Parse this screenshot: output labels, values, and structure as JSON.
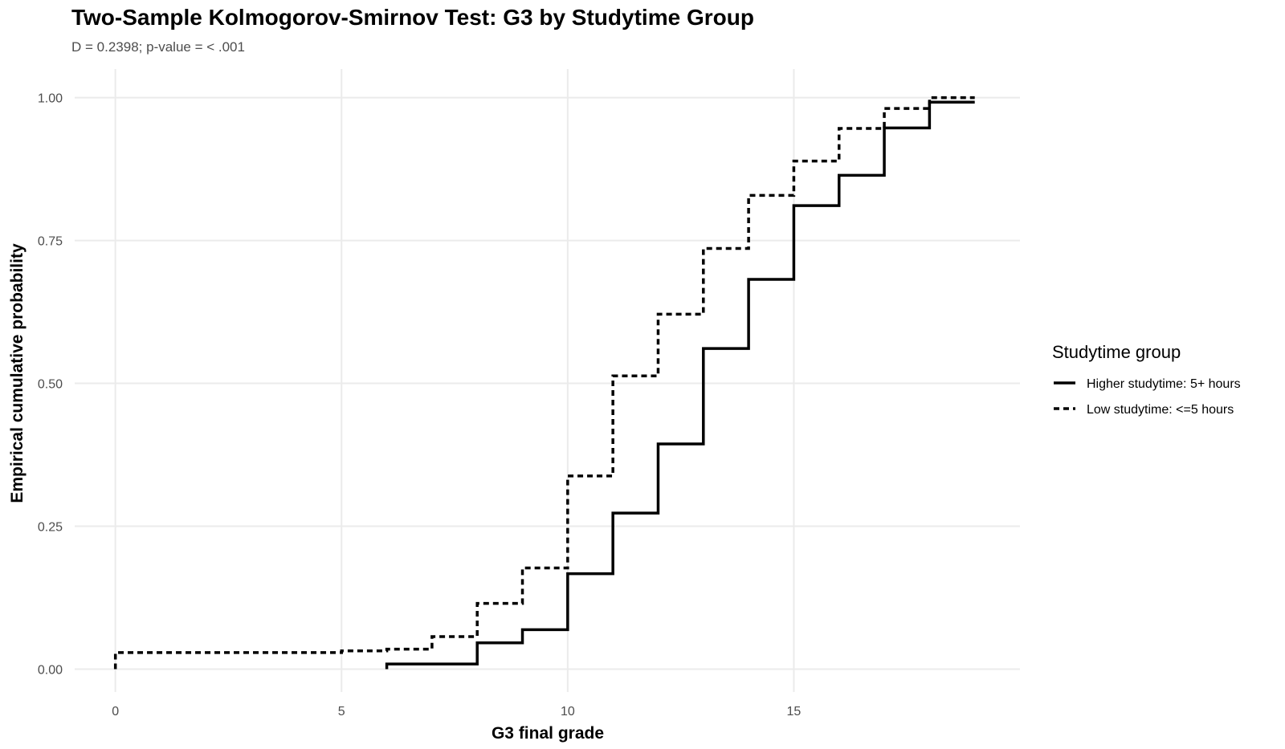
{
  "chart_data": {
    "type": "line",
    "step": true,
    "title": "Two-Sample Kolmogorov-Smirnov Test: G3 by Studytime Group",
    "subtitle": "D = 0.2398; p-value = < .001",
    "xlabel": "G3 final grade",
    "ylabel": "Empirical cumulative probability",
    "xlim": [
      -0.9,
      20.0
    ],
    "ylim": [
      -0.04,
      1.05
    ],
    "x_ticks": [
      0,
      5,
      10,
      15
    ],
    "y_ticks": [
      0,
      0.25,
      0.5,
      0.75,
      1.0
    ],
    "y_tick_labels": [
      "0.00",
      "0.25",
      "0.50",
      "0.75",
      "1.00"
    ],
    "grid": true,
    "legend": {
      "title": "Studytime group",
      "position": "right"
    },
    "series": [
      {
        "name": "Higher studytime: 5+ hours",
        "linetype": "solid",
        "color": "#000000",
        "x": [
          6,
          8,
          9,
          10,
          11,
          12,
          13,
          14,
          15,
          16,
          17,
          18,
          19
        ],
        "y": [
          0.009,
          0.046,
          0.069,
          0.167,
          0.273,
          0.394,
          0.561,
          0.682,
          0.811,
          0.864,
          0.947,
          0.992,
          0.992
        ]
      },
      {
        "name": "Low studytime: <=5 hours",
        "linetype": "dashed",
        "color": "#000000",
        "x": [
          0,
          5,
          6,
          7,
          8,
          9,
          10,
          11,
          12,
          13,
          14,
          15,
          16,
          17,
          18,
          19
        ],
        "y": [
          0.029,
          0.032,
          0.035,
          0.057,
          0.115,
          0.177,
          0.338,
          0.513,
          0.621,
          0.736,
          0.829,
          0.889,
          0.946,
          0.981,
          1.0,
          1.0
        ]
      }
    ]
  }
}
